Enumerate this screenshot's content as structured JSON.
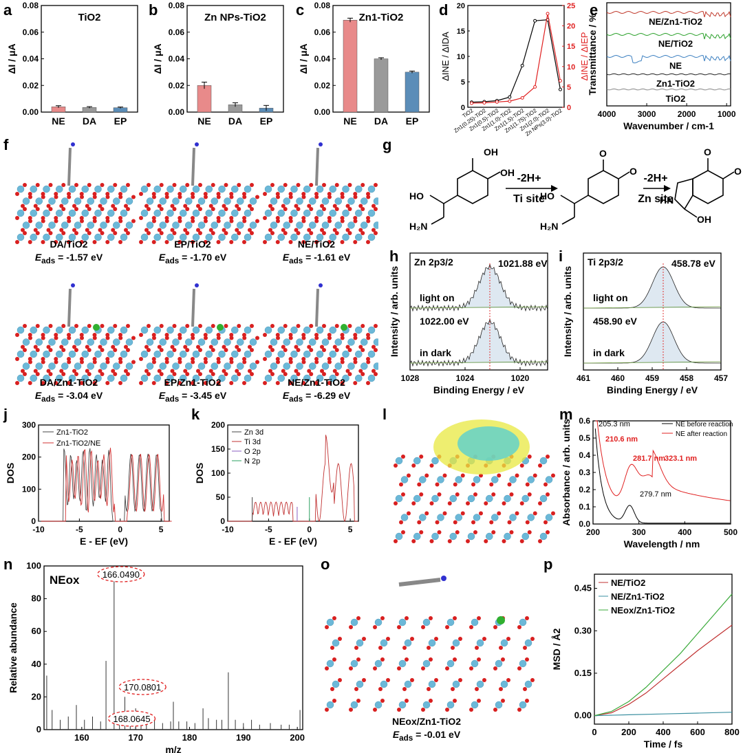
{
  "panel_labels": [
    "a",
    "b",
    "c",
    "d",
    "e",
    "f",
    "g",
    "h",
    "i",
    "j",
    "k",
    "l",
    "m",
    "n",
    "o",
    "p"
  ],
  "chart_data": [
    {
      "id": "a",
      "type": "bar",
      "title": "TiO2",
      "categories": [
        "NE",
        "DA",
        "EP"
      ],
      "values": [
        0.004,
        0.0035,
        0.0033
      ],
      "errors": [
        0.0008,
        0.0006,
        0.0005
      ],
      "ylabel": "ΔI / μA",
      "ylim": [
        0,
        0.08
      ],
      "yticks": [
        0.0,
        0.02,
        0.04,
        0.06,
        0.08
      ],
      "colors": [
        "#e88a8a",
        "#9a9a9a",
        "#5b8db8"
      ]
    },
    {
      "id": "b",
      "type": "bar",
      "title": "Zn NPs-TiO2",
      "categories": [
        "NE",
        "DA",
        "EP"
      ],
      "values": [
        0.02,
        0.0055,
        0.003
      ],
      "errors": [
        0.0025,
        0.0015,
        0.002
      ],
      "ylabel": "ΔI / μA",
      "ylim": [
        0,
        0.08
      ],
      "yticks": [
        0.0,
        0.02,
        0.04,
        0.06,
        0.08
      ],
      "colors": [
        "#e88a8a",
        "#9a9a9a",
        "#5b8db8"
      ]
    },
    {
      "id": "c",
      "type": "bar",
      "title": "Zn1-TiO2",
      "categories": [
        "NE",
        "DA",
        "EP"
      ],
      "values": [
        0.069,
        0.04,
        0.03
      ],
      "errors": [
        0.0015,
        0.0008,
        0.0008
      ],
      "ylabel": "ΔI / μA",
      "ylim": [
        0,
        0.08
      ],
      "yticks": [
        0.0,
        0.02,
        0.04,
        0.06,
        0.08
      ],
      "colors": [
        "#e88a8a",
        "#9a9a9a",
        "#5b8db8"
      ]
    },
    {
      "id": "d",
      "type": "line",
      "categories": [
        "TiO2",
        "Zn1(0.25)-TiO2",
        "Zn1(0.5)-TiO2",
        "Zn1(1.0)-TiO2",
        "Zn1(1.5)-TiO2",
        "Zn1(1.75)-TiO2",
        "Zn1(2.0)-TiO2",
        "Zn NPs(3.0)-TiO2"
      ],
      "series": [
        {
          "name": "ΔINE / ΔIDA",
          "color": "#000000",
          "axis": "left",
          "values": [
            1,
            1.1,
            1.3,
            2,
            8.2,
            17,
            17.2,
            3.5
          ]
        },
        {
          "name": "ΔINE / ΔIEP",
          "color": "#e02020",
          "axis": "right",
          "values": [
            1,
            1.1,
            1.3,
            1.5,
            2.3,
            5,
            23,
            6.5
          ]
        }
      ],
      "ylabel": "ΔINE / ΔIDA",
      "ylabel_right": "ΔINE / ΔIEP",
      "ylim": [
        0,
        20
      ],
      "ylim_right": [
        0,
        25
      ],
      "yticks": [
        0,
        5,
        10,
        15,
        20
      ],
      "yticks_right": [
        0,
        5,
        10,
        15,
        20,
        25
      ]
    },
    {
      "id": "e",
      "type": "line",
      "xlabel": "Wavenumber / cm-1",
      "ylabel": "Transmittance / %",
      "xlim": [
        4000,
        900
      ],
      "xticks": [
        4000,
        3000,
        2000,
        1000
      ],
      "series": [
        {
          "name": "NE/Zn1-TiO2",
          "color": "#c0392b"
        },
        {
          "name": "NE/TiO2",
          "color": "#2aa02a"
        },
        {
          "name": "NE",
          "color": "#3b7fc0"
        },
        {
          "name": "Zn1-TiO2",
          "color": "#222222"
        },
        {
          "name": "TiO2",
          "color": "#888888"
        }
      ]
    },
    {
      "id": "h",
      "type": "line",
      "title": "Zn 2p3/2",
      "xlabel": "Binding Energy / eV",
      "ylabel": "Intensity / arb. units",
      "xlim": [
        1028,
        1018
      ],
      "xticks": [
        1028,
        1024,
        1020
      ],
      "annotations": [
        "1021.88 eV",
        "light on",
        "1022.00 eV",
        "in dark"
      ]
    },
    {
      "id": "i",
      "type": "line",
      "title": "Ti 2p3/2",
      "xlabel": "Binding Energy / eV",
      "ylabel": "Intensity / arb. units",
      "xlim": [
        461,
        457
      ],
      "xticks": [
        461,
        460,
        459,
        458,
        457
      ],
      "annotations": [
        "458.78 eV",
        "light on",
        "458.90 eV",
        "in dark"
      ]
    },
    {
      "id": "j",
      "type": "line",
      "xlabel": "E - EF (eV)",
      "ylabel": "DOS",
      "xlim": [
        -10,
        6
      ],
      "ylim": [
        0,
        300
      ],
      "xticks": [
        -10,
        -5,
        0,
        5
      ],
      "yticks": [
        0,
        100,
        200,
        300
      ],
      "series": [
        {
          "name": "Zn1-TiO2",
          "color": "#444444"
        },
        {
          "name": "Zn1-TiO2/NE",
          "color": "#d03030"
        }
      ]
    },
    {
      "id": "k",
      "type": "line",
      "xlabel": "E - EF (eV)",
      "ylabel": "DOS",
      "xlim": [
        -10,
        6
      ],
      "ylim": [
        0,
        200
      ],
      "xticks": [
        -10,
        -5,
        0,
        5
      ],
      "yticks": [
        0,
        50,
        100,
        150,
        200
      ],
      "series": [
        {
          "name": "Zn 3d",
          "color": "#444444"
        },
        {
          "name": "Ti 3d",
          "color": "#c03030"
        },
        {
          "name": "O 2p",
          "color": "#8a5cc0"
        },
        {
          "name": "N 2p",
          "color": "#2aa060"
        }
      ]
    },
    {
      "id": "m",
      "type": "line",
      "xlabel": "Wavelength / nm",
      "ylabel": "Absorbance / arb. units",
      "xlim": [
        200,
        500
      ],
      "ylim": [
        0,
        0.6
      ],
      "xticks": [
        200,
        300,
        400,
        500
      ],
      "yticks": [
        0.0,
        0.1,
        0.2,
        0.3,
        0.4,
        0.5,
        0.6
      ],
      "series": [
        {
          "name": "NE before reaction",
          "color": "#000000"
        },
        {
          "name": "NE after reaction",
          "color": "#e02020"
        }
      ],
      "annotations": [
        "205.3 nm",
        "210.6 nm",
        "281.7 nm",
        "323.1 nm",
        "279.7 nm"
      ]
    },
    {
      "id": "n",
      "type": "bar",
      "title": "NEox",
      "xlabel": "m/z",
      "ylabel": "Relative abundance",
      "xlim": [
        153,
        201
      ],
      "ylim": [
        0,
        100
      ],
      "xticks": [
        160,
        170,
        180,
        190,
        200
      ],
      "yticks": [
        0,
        20,
        40,
        60,
        80,
        100
      ],
      "peaks": [
        [
          153.5,
          33
        ],
        [
          154.5,
          12
        ],
        [
          156,
          6
        ],
        [
          157.5,
          8
        ],
        [
          159,
          15
        ],
        [
          160.5,
          6
        ],
        [
          162,
          8
        ],
        [
          163.5,
          5
        ],
        [
          164.5,
          42
        ],
        [
          166,
          100
        ],
        [
          167,
          11
        ],
        [
          168,
          20
        ],
        [
          169,
          5
        ],
        [
          170,
          13
        ],
        [
          171,
          10
        ],
        [
          172,
          6
        ],
        [
          173.5,
          6
        ],
        [
          175,
          4
        ],
        [
          176.5,
          5
        ],
        [
          177,
          17
        ],
        [
          178,
          5
        ],
        [
          179.5,
          5
        ],
        [
          181,
          4
        ],
        [
          182.5,
          13
        ],
        [
          183.5,
          7
        ],
        [
          185,
          6
        ],
        [
          186,
          6
        ],
        [
          187.2,
          35
        ],
        [
          188.5,
          6
        ],
        [
          190,
          4
        ],
        [
          191.5,
          6
        ],
        [
          193,
          3
        ],
        [
          195,
          4
        ],
        [
          197,
          3
        ],
        [
          198.5,
          3
        ],
        [
          200.5,
          12
        ]
      ],
      "annotations": [
        "166.0490",
        "170.0801",
        "168.0645"
      ]
    },
    {
      "id": "p",
      "type": "line",
      "xlabel": "Time / fs",
      "ylabel": "MSD / Å2",
      "xlim": [
        0,
        800
      ],
      "ylim": [
        -0.03,
        0.5
      ],
      "xticks": [
        0,
        200,
        400,
        600,
        800
      ],
      "yticks": [
        0.0,
        0.15,
        0.3,
        0.45
      ],
      "series": [
        {
          "name": "NE/TiO2",
          "color": "#c03030",
          "values": [
            [
              0,
              0
            ],
            [
              100,
              0.01
            ],
            [
              200,
              0.04
            ],
            [
              300,
              0.08
            ],
            [
              400,
              0.13
            ],
            [
              500,
              0.18
            ],
            [
              600,
              0.23
            ],
            [
              700,
              0.275
            ],
            [
              800,
              0.32
            ]
          ]
        },
        {
          "name": "NE/Zn1-TiO2",
          "color": "#3a8fa0",
          "values": [
            [
              0,
              0
            ],
            [
              200,
              0.003
            ],
            [
              400,
              0.006
            ],
            [
              600,
              0.009
            ],
            [
              800,
              0.012
            ]
          ]
        },
        {
          "name": "NEox/Zn1-TiO2",
          "color": "#3aaa3a",
          "values": [
            [
              0,
              0
            ],
            [
              100,
              0.015
            ],
            [
              200,
              0.05
            ],
            [
              300,
              0.1
            ],
            [
              400,
              0.16
            ],
            [
              500,
              0.22
            ],
            [
              600,
              0.29
            ],
            [
              700,
              0.36
            ],
            [
              800,
              0.43
            ]
          ]
        }
      ]
    }
  ],
  "scheme_g": {
    "step1_reagent": "-2H+",
    "step1_site": "Ti site",
    "step2_reagent": "-2H+",
    "step2_site": "Zn site"
  },
  "panel_f_captions": [
    {
      "name": "DA/TiO2",
      "eads": "-1.57 eV"
    },
    {
      "name": "EP/TiO2",
      "eads": "-1.70 eV"
    },
    {
      "name": "NE/TiO2",
      "eads": "-1.61 eV"
    },
    {
      "name": "DA/Zn1-TiO2",
      "eads": "-3.04 eV"
    },
    {
      "name": "EP/Zn1-TiO2",
      "eads": "-3.45 eV"
    },
    {
      "name": "NE/Zn1-TiO2",
      "eads": "-6.29 eV"
    }
  ],
  "panel_o_caption": {
    "name": "NEox/Zn1-TiO2",
    "eads": "-0.01 eV"
  },
  "eads_label": "Eads ="
}
